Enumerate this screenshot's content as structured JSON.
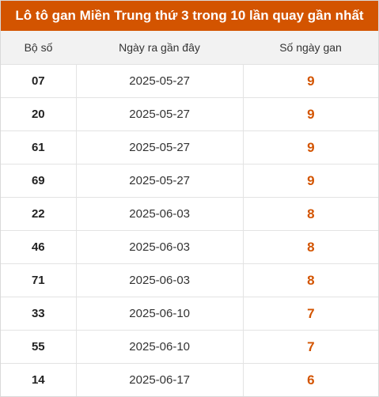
{
  "title": "Lô tô gan Miền Trung thứ 3 trong 10 lần quay gần nhất",
  "accent_color": "#d35400",
  "columns": [
    "Bộ số",
    "Ngày ra gần đây",
    "Số ngày gan"
  ],
  "rows": [
    {
      "number": "07",
      "date": "2025-05-27",
      "days": "9"
    },
    {
      "number": "20",
      "date": "2025-05-27",
      "days": "9"
    },
    {
      "number": "61",
      "date": "2025-05-27",
      "days": "9"
    },
    {
      "number": "69",
      "date": "2025-05-27",
      "days": "9"
    },
    {
      "number": "22",
      "date": "2025-06-03",
      "days": "8"
    },
    {
      "number": "46",
      "date": "2025-06-03",
      "days": "8"
    },
    {
      "number": "71",
      "date": "2025-06-03",
      "days": "8"
    },
    {
      "number": "33",
      "date": "2025-06-10",
      "days": "7"
    },
    {
      "number": "55",
      "date": "2025-06-10",
      "days": "7"
    },
    {
      "number": "14",
      "date": "2025-06-17",
      "days": "6"
    }
  ]
}
